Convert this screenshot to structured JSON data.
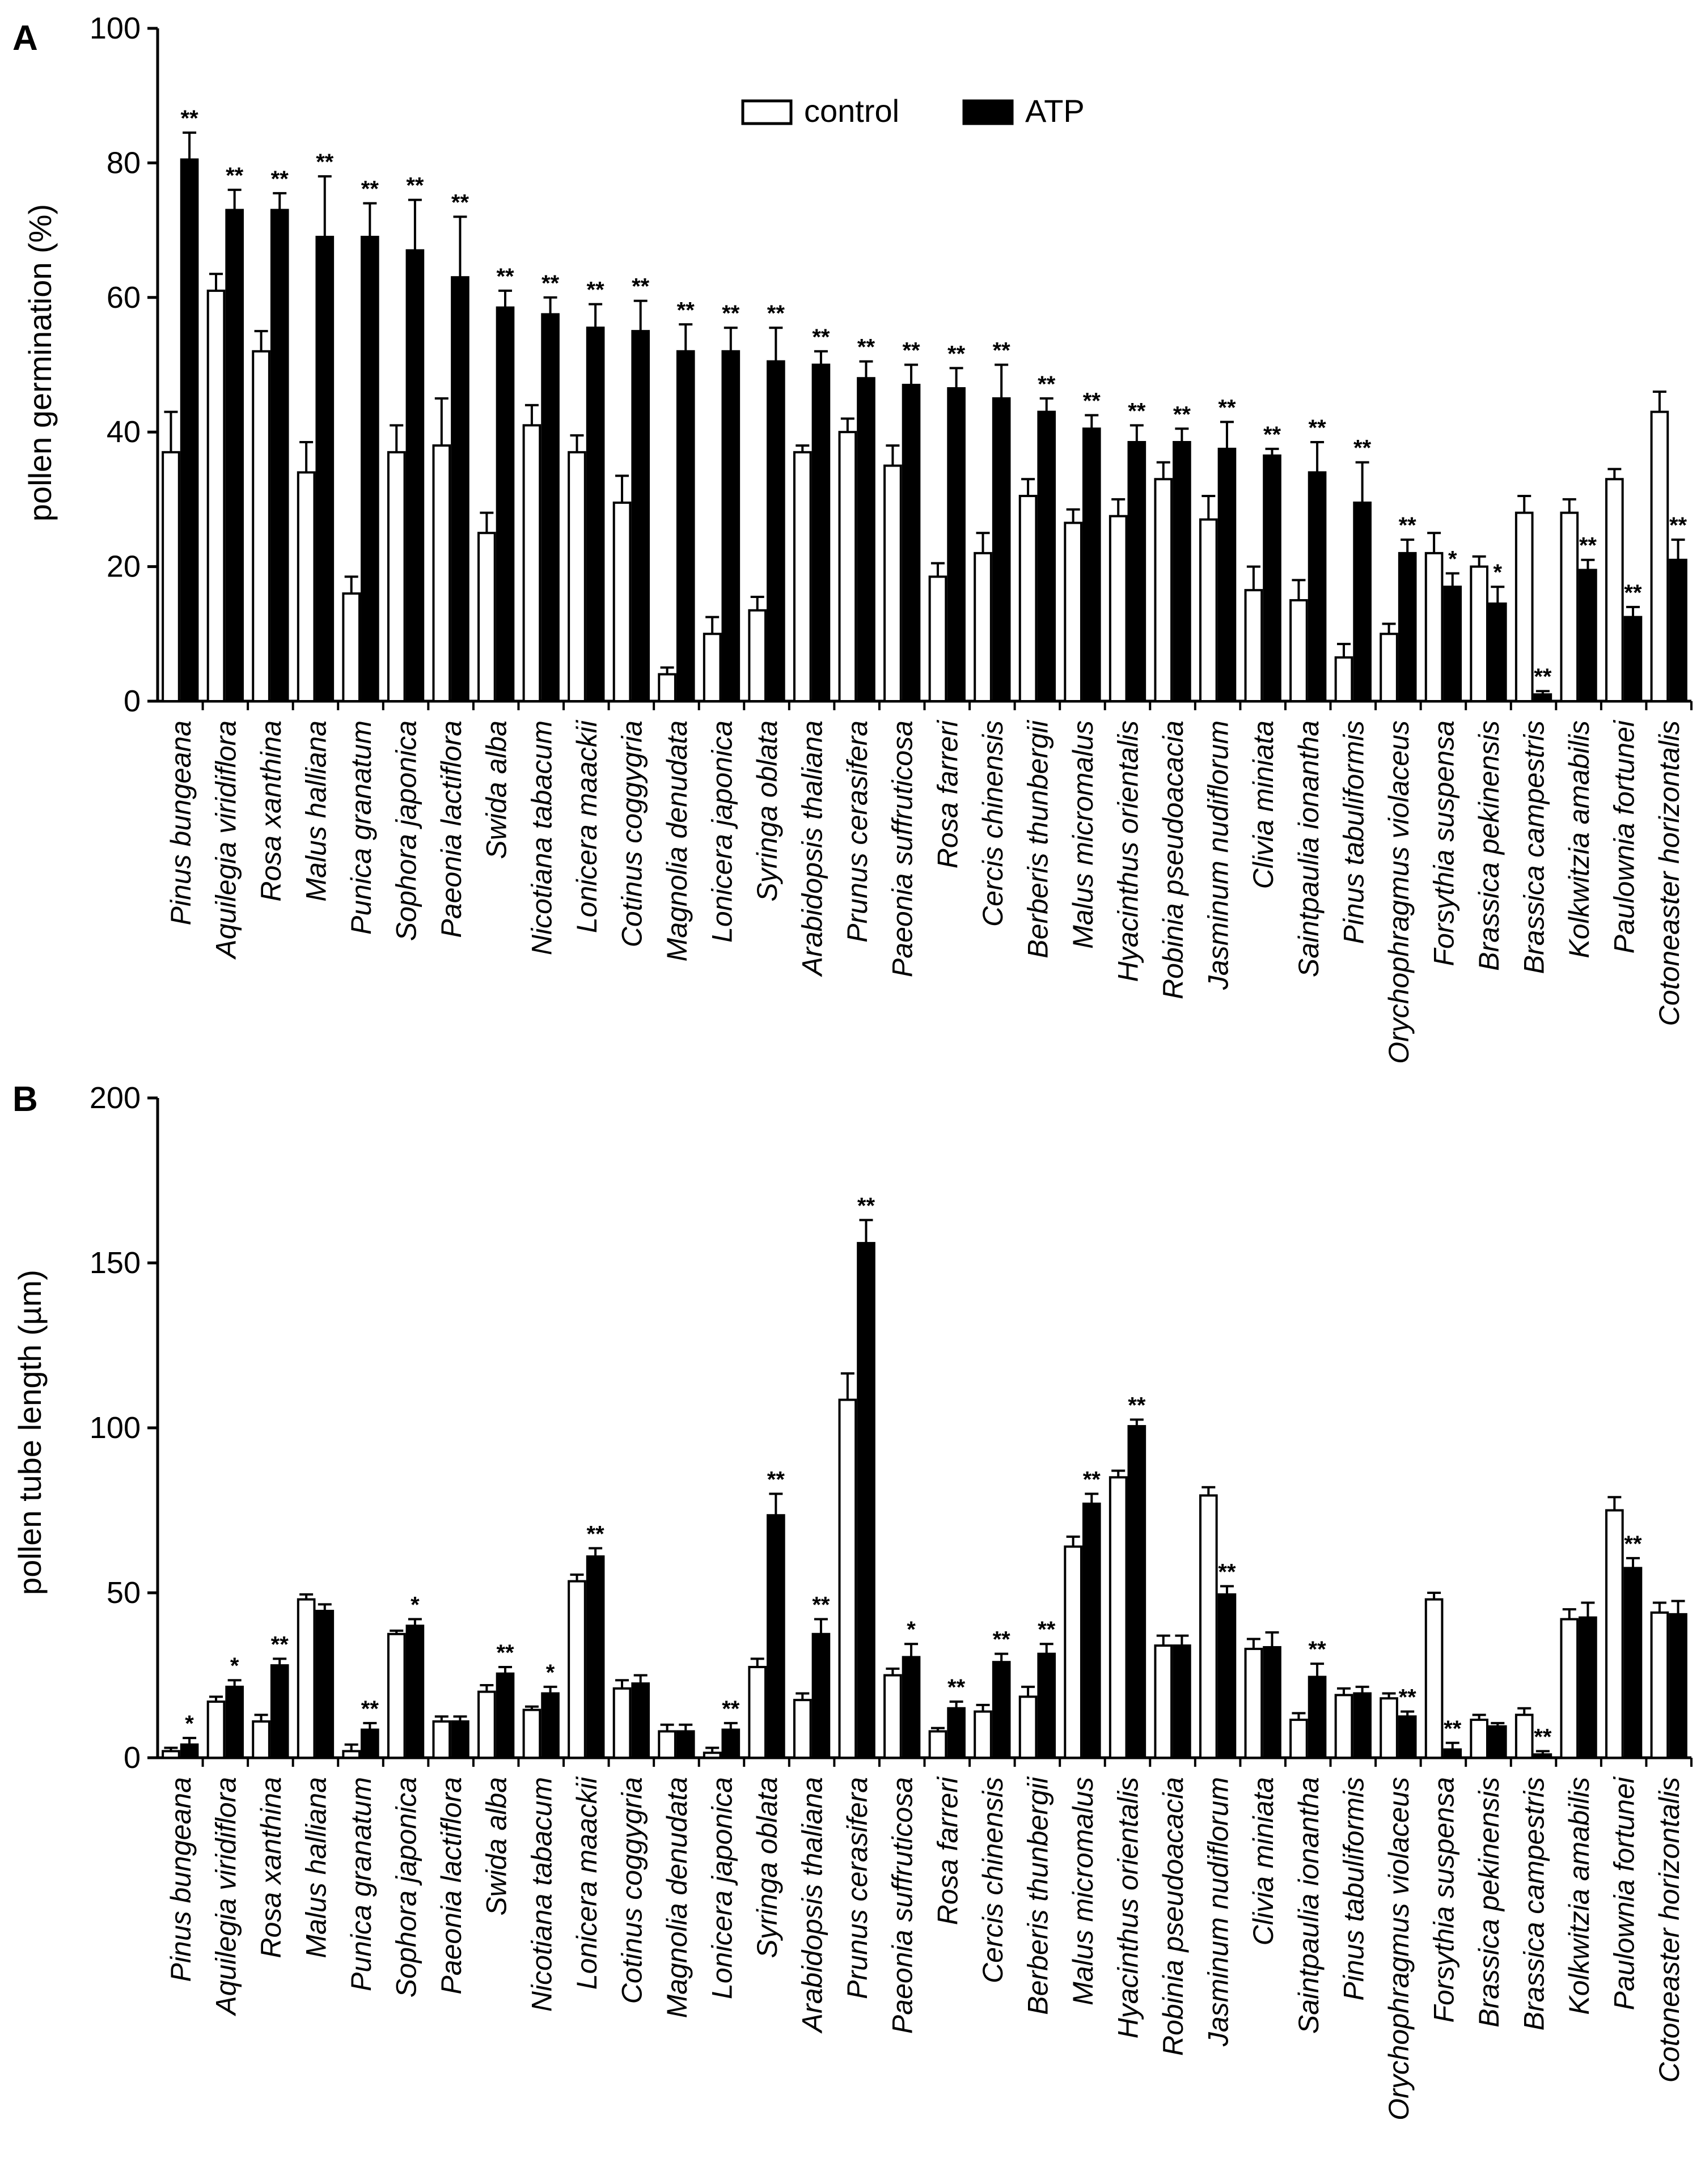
{
  "chart_data": [
    {
      "panel": "A",
      "type": "bar",
      "ylabel": "pollen germination (%)",
      "ylim": [
        0,
        100
      ],
      "yticks": [
        0,
        20,
        40,
        60,
        80,
        100
      ],
      "legend": [
        "control",
        "ATP"
      ],
      "legend_position": "top-center",
      "categories": [
        "Pinus bungeana",
        "Aquilegia viridiflora",
        "Rosa xanthina",
        "Malus halliana",
        "Punica granatum",
        "Sophora japonica",
        "Paeonia lactiflora",
        "Swida alba",
        "Nicotiana tabacum",
        "Lonicera maackii",
        "Cotinus coggygria",
        "Magnolia denudata",
        "Lonicera japonica",
        "Syringa oblata",
        "Arabidopsis thaliana",
        "Prunus cerasifera",
        "Paeonia suffruticosa",
        "Rosa farreri",
        "Cercis chinensis",
        "Berberis thunbergii",
        "Malus micromalus",
        "Hyacinthus orientalis",
        "Robinia pseudoacacia",
        "Jasminum nudiflorum",
        "Clivia miniata",
        "Saintpaulia ionantha",
        "Pinus tabuliformis",
        "Orychophragmus violaceus",
        "Forsythia suspensa",
        "Brassica pekinensis",
        "Brassica campestris",
        "Kolkwitzia amabilis",
        "Paulownia fortunei",
        "Cotoneaster horizontalis"
      ],
      "series": [
        {
          "name": "control",
          "values": [
            37,
            61,
            52,
            34,
            16,
            37,
            38,
            25,
            41,
            37,
            29.5,
            4,
            10,
            13.5,
            37,
            40,
            35,
            18.5,
            22,
            30.5,
            26.5,
            27.5,
            33,
            27,
            16.5,
            15,
            6.5,
            10,
            22,
            20,
            28,
            28,
            33,
            43
          ],
          "errors": [
            6,
            2.5,
            3,
            4.5,
            2.5,
            4,
            7,
            3,
            3,
            2.5,
            4,
            1,
            2.5,
            2,
            1,
            2,
            3,
            2,
            3,
            2.5,
            2,
            2.5,
            2.5,
            3.5,
            3.5,
            3,
            2,
            1.5,
            3,
            1.5,
            2.5,
            2,
            1.5,
            3
          ]
        },
        {
          "name": "ATP",
          "values": [
            80.5,
            73,
            73,
            69,
            69,
            67,
            63,
            58.5,
            57.5,
            55.5,
            55,
            52,
            52,
            50.5,
            50,
            48,
            47,
            46.5,
            45,
            43,
            40.5,
            38.5,
            38.5,
            37.5,
            36.5,
            34,
            29.5,
            22,
            17,
            14.5,
            1,
            19.5,
            12.5,
            21
          ],
          "errors": [
            4,
            3,
            2.5,
            9,
            5,
            7.5,
            9,
            2.5,
            2.5,
            3.5,
            4.5,
            4,
            3.5,
            5,
            2,
            2.5,
            3,
            3,
            5,
            2,
            2,
            2.5,
            2,
            4,
            1,
            4.5,
            6,
            2,
            2,
            2.5,
            0.5,
            1.5,
            1.5,
            3
          ],
          "significance": [
            "**",
            "**",
            "**",
            "**",
            "**",
            "**",
            "**",
            "**",
            "**",
            "**",
            "**",
            "**",
            "**",
            "**",
            "**",
            "**",
            "**",
            "**",
            "**",
            "**",
            "**",
            "**",
            "**",
            "**",
            "**",
            "**",
            "**",
            "**",
            "*",
            "*",
            "**",
            "**",
            "**",
            "**"
          ]
        }
      ]
    },
    {
      "panel": "B",
      "type": "bar",
      "ylabel": "pollen tube length (µm)",
      "ylim": [
        0,
        200
      ],
      "yticks": [
        0,
        50,
        100,
        150,
        200
      ],
      "categories": [
        "Pinus bungeana",
        "Aquilegia viridiflora",
        "Rosa xanthina",
        "Malus halliana",
        "Punica granatum",
        "Sophora japonica",
        "Paeonia lactiflora",
        "Swida alba",
        "Nicotiana tabacum",
        "Lonicera maackii",
        "Cotinus coggygria",
        "Magnolia denudata",
        "Lonicera japonica",
        "Syringa oblata",
        "Arabidopsis thaliana",
        "Prunus cerasifera",
        "Paeonia suffruticosa",
        "Rosa farreri",
        "Cercis chinensis",
        "Berberis thunbergii",
        "Malus micromalus",
        "Hyacinthus orientalis",
        "Robinia pseudoacacia",
        "Jasminum nudiflorum",
        "Clivia miniata",
        "Saintpaulia ionantha",
        "Pinus tabuliformis",
        "Orychophragmus violaceus",
        "Forsythia suspensa",
        "Brassica pekinensis",
        "Brassica campestris",
        "Kolkwitzia amabilis",
        "Paulownia fortunei",
        "Cotoneaster horizontalis"
      ],
      "series": [
        {
          "name": "control",
          "values": [
            2,
            17,
            11,
            48,
            2,
            37.5,
            11,
            20,
            14.5,
            53.5,
            21,
            8,
            1.5,
            27.5,
            17.5,
            108.5,
            25,
            8,
            14,
            18.5,
            64,
            85,
            34,
            79.5,
            33,
            11.5,
            19,
            18,
            48,
            11.5,
            13,
            42,
            75,
            44
          ],
          "errors": [
            1,
            1.5,
            2,
            1.5,
            2,
            1,
            1.5,
            2,
            1,
            2,
            2.5,
            2,
            1.5,
            2.5,
            2,
            8,
            2,
            1,
            2,
            3,
            3,
            2,
            3,
            2.5,
            3,
            2,
            2,
            1.5,
            2,
            1.5,
            2,
            3,
            4,
            3
          ],
          "significance": [
            "",
            "",
            "",
            "",
            "",
            "",
            "",
            "",
            "",
            "",
            "",
            "",
            "",
            "",
            "",
            "",
            "",
            "",
            "",
            "",
            "",
            "",
            "",
            "",
            "",
            "",
            "",
            "",
            "",
            "",
            "",
            "",
            "",
            ""
          ]
        },
        {
          "name": "ATP",
          "values": [
            4,
            21.5,
            28,
            44.5,
            8.5,
            40,
            11,
            25.5,
            19.5,
            61,
            22.5,
            8,
            8.5,
            73.5,
            37.5,
            156,
            30.5,
            15,
            29,
            31.5,
            77,
            100.5,
            34,
            49.5,
            33.5,
            24.5,
            19.5,
            12.5,
            2.5,
            9.5,
            1,
            42.5,
            57.5,
            43.5
          ],
          "errors": [
            2,
            2,
            2,
            2,
            2,
            2,
            1.5,
            2,
            2,
            2.5,
            2.5,
            2,
            2,
            6.5,
            4.5,
            7,
            4,
            2,
            2.5,
            3,
            3,
            2,
            3,
            2.5,
            4.5,
            4,
            2,
            1.5,
            2,
            1,
            1,
            4.5,
            3,
            4
          ],
          "significance": [
            "*",
            "*",
            "**",
            "",
            "**",
            "*",
            "",
            "**",
            "*",
            "**",
            "",
            "",
            "**",
            "**",
            "**",
            "**",
            "*",
            "**",
            "**",
            "**",
            "**",
            "**",
            "",
            "**",
            "",
            "**",
            "",
            "**",
            "**",
            "",
            "**",
            "",
            "**",
            ""
          ]
        }
      ]
    }
  ],
  "labels": {
    "panel_a": "A",
    "panel_b": "B",
    "ylabel_a": "pollen germination (%)",
    "ylabel_b": "pollen tube length (µm)",
    "legend_control": "control",
    "legend_atp": "ATP"
  },
  "colors": {
    "control": "#ffffff",
    "atp": "#000000",
    "stroke": "#000000"
  }
}
